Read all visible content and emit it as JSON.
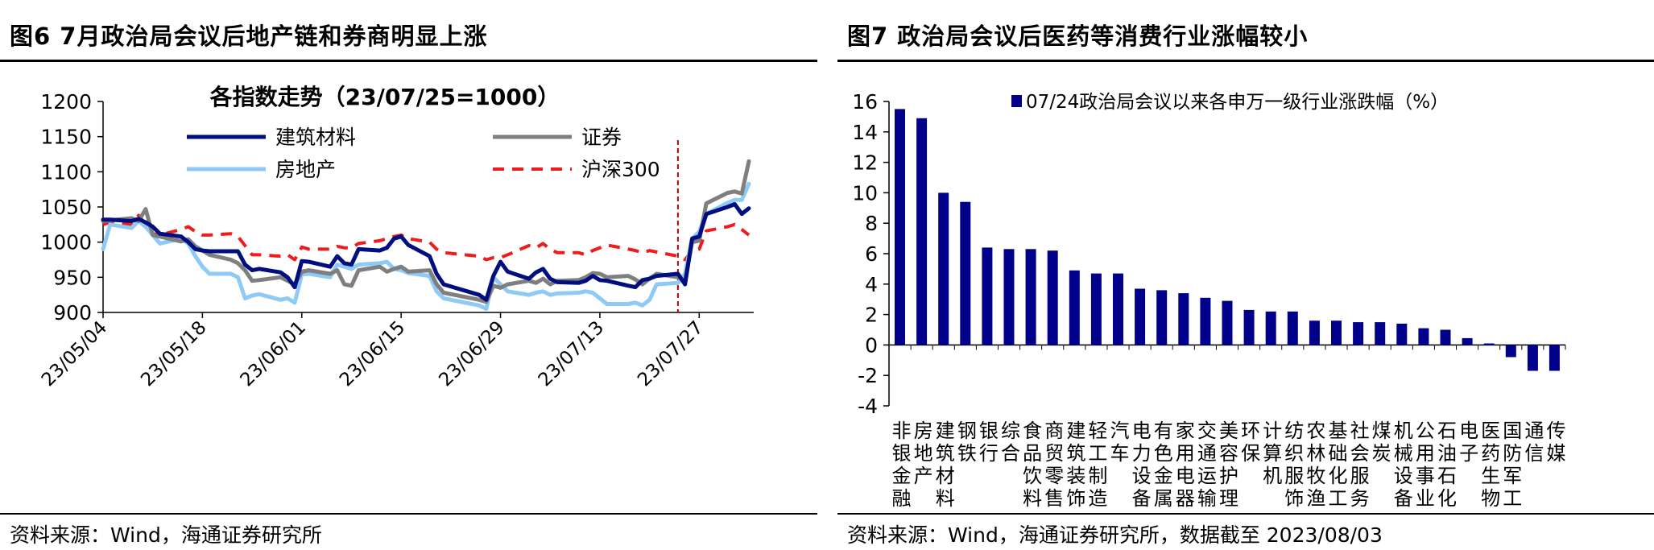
{
  "left_panel": {
    "figure_title": "图6  7月政治局会议后地产链和券商明显上涨",
    "source": "资料来源：Wind，海通证券研究所"
  },
  "right_panel": {
    "figure_title": "图7  政治局会议后医药等消费行业涨幅较小",
    "source": "资料来源：Wind，海通证券研究所，数据截至 2023/08/03"
  },
  "colors": {
    "navy": "#000e7f",
    "gray": "#7f7f7f",
    "lightblue": "#8fcaf5",
    "red": "#ee1c1c",
    "bar": "#00008b"
  },
  "chart_data": [
    {
      "type": "line",
      "title": "各指数走势（23/07/25=1000）",
      "ylim": [
        900,
        1200
      ],
      "yticks": [
        900,
        950,
        1000,
        1050,
        1100,
        1150,
        1200
      ],
      "xticks": [
        "23/05/04",
        "23/05/18",
        "23/06/01",
        "23/06/15",
        "23/06/29",
        "23/07/13",
        "23/07/27"
      ],
      "x_dates": [
        "2023-05-04",
        "2023-05-05",
        "2023-05-08",
        "2023-05-09",
        "2023-05-10",
        "2023-05-11",
        "2023-05-12",
        "2023-05-15",
        "2023-05-16",
        "2023-05-17",
        "2023-05-18",
        "2023-05-19",
        "2023-05-22",
        "2023-05-23",
        "2023-05-24",
        "2023-05-25",
        "2023-05-26",
        "2023-05-29",
        "2023-05-30",
        "2023-05-31",
        "2023-06-01",
        "2023-06-02",
        "2023-06-05",
        "2023-06-06",
        "2023-06-07",
        "2023-06-08",
        "2023-06-09",
        "2023-06-12",
        "2023-06-13",
        "2023-06-14",
        "2023-06-15",
        "2023-06-16",
        "2023-06-19",
        "2023-06-20",
        "2023-06-21",
        "2023-06-26",
        "2023-06-27",
        "2023-06-28",
        "2023-06-29",
        "2023-06-30",
        "2023-07-03",
        "2023-07-04",
        "2023-07-05",
        "2023-07-06",
        "2023-07-07",
        "2023-07-10",
        "2023-07-11",
        "2023-07-12",
        "2023-07-13",
        "2023-07-14",
        "2023-07-17",
        "2023-07-18",
        "2023-07-19",
        "2023-07-20",
        "2023-07-21",
        "2023-07-24",
        "2023-07-25",
        "2023-07-26",
        "2023-07-27",
        "2023-07-28",
        "2023-07-31",
        "2023-08-01",
        "2023-08-02",
        "2023-08-03"
      ],
      "legend_position": "top",
      "vline_date": "2023-07-24",
      "series": [
        {
          "name": "建筑材料",
          "color": "#000e7f",
          "style": "solid",
          "values": [
            1032,
            1032,
            1030,
            1033,
            1028,
            1022,
            1012,
            1008,
            1000,
            990,
            988,
            987,
            987,
            987,
            968,
            960,
            962,
            957,
            950,
            936,
            973,
            972,
            965,
            980,
            970,
            968,
            990,
            988,
            992,
            1005,
            1008,
            996,
            980,
            955,
            940,
            925,
            918,
            952,
            972,
            958,
            948,
            957,
            962,
            948,
            943,
            942,
            945,
            952,
            946,
            945,
            938,
            936,
            946,
            948,
            952,
            955,
            940,
            1005,
            1008,
            1040,
            1050,
            1054,
            1040,
            1048
          ]
        },
        {
          "name": "证券",
          "color": "#7f7f7f",
          "style": "solid",
          "values": [
            1030,
            1031,
            1034,
            1030,
            1047,
            1010,
            1008,
            1001,
            1004,
            994,
            988,
            982,
            975,
            970,
            960,
            945,
            946,
            950,
            945,
            940,
            958,
            960,
            955,
            960,
            940,
            938,
            960,
            965,
            958,
            962,
            965,
            958,
            960,
            940,
            928,
            918,
            915,
            938,
            935,
            940,
            945,
            942,
            948,
            940,
            945,
            946,
            950,
            956,
            955,
            950,
            952,
            947,
            940,
            948,
            955,
            950,
            945,
            1000,
            1002,
            1055,
            1070,
            1072,
            1069,
            1115
          ]
        },
        {
          "name": "房地产",
          "color": "#8fcaf5",
          "style": "solid",
          "values": [
            990,
            1025,
            1020,
            1030,
            1022,
            1010,
            998,
            1005,
            998,
            980,
            965,
            955,
            955,
            950,
            920,
            924,
            926,
            918,
            920,
            914,
            954,
            955,
            950,
            968,
            965,
            962,
            968,
            970,
            972,
            962,
            960,
            956,
            952,
            930,
            920,
            910,
            905,
            950,
            940,
            930,
            925,
            928,
            930,
            925,
            927,
            928,
            930,
            928,
            920,
            912,
            912,
            914,
            910,
            918,
            940,
            942,
            955,
            1005,
            1015,
            1040,
            1056,
            1060,
            1060,
            1083
          ]
        },
        {
          "name": "沪深300",
          "color": "#ee1c1c",
          "style": "dash",
          "values": [
            1025,
            1028,
            1025,
            1038,
            1025,
            1012,
            1010,
            1018,
            1022,
            1015,
            1010,
            1010,
            1012,
            1008,
            995,
            982,
            982,
            980,
            982,
            975,
            993,
            990,
            990,
            994,
            992,
            992,
            998,
            1002,
            1005,
            1008,
            1010,
            1005,
            1000,
            990,
            985,
            980,
            975,
            978,
            978,
            982,
            995,
            992,
            998,
            990,
            985,
            985,
            982,
            988,
            992,
            996,
            990,
            988,
            985,
            988,
            986,
            980,
            975,
            988,
            990,
            1016,
            1022,
            1025,
            1018,
            1010
          ]
        }
      ]
    },
    {
      "type": "bar",
      "legend": "07/24政治局会议以来各申万一级行业涨跌幅（%）",
      "legend_position": "top",
      "ylim": [
        -4,
        16
      ],
      "yticks": [
        -4,
        -2,
        0,
        2,
        4,
        6,
        8,
        10,
        12,
        14,
        16
      ],
      "categories": [
        "非银金融",
        "房地产",
        "建筑材料",
        "钢铁",
        "银行",
        "综合",
        "食品饮料",
        "商贸零售",
        "建筑装饰",
        "轻工制造",
        "汽车",
        "电力设备",
        "有色金属",
        "家用电器",
        "交通运输",
        "美容护理",
        "环保",
        "计算机",
        "纺织服饰",
        "农林牧渔",
        "基础化工",
        "社会服务",
        "煤炭",
        "机械设备",
        "公用事业",
        "石油石化",
        "电子",
        "医药生物",
        "国防军工",
        "通信",
        "传媒"
      ],
      "category_lines": [
        [
          "非",
          "银",
          "金",
          "融"
        ],
        [
          "房",
          "地",
          "产",
          ""
        ],
        [
          "建",
          "筑",
          "材",
          "料"
        ],
        [
          "钢",
          "铁",
          "",
          ""
        ],
        [
          "银",
          "行",
          "",
          ""
        ],
        [
          "综",
          "合",
          "",
          ""
        ],
        [
          "食",
          "品",
          "饮",
          "料"
        ],
        [
          "商",
          "贸",
          "零",
          "售"
        ],
        [
          "建",
          "筑",
          "装",
          "饰"
        ],
        [
          "轻",
          "工",
          "制",
          "造"
        ],
        [
          "汽",
          "车",
          "",
          ""
        ],
        [
          "电",
          "力",
          "设",
          "备"
        ],
        [
          "有",
          "色",
          "金",
          "属"
        ],
        [
          "家",
          "用",
          "电",
          "器"
        ],
        [
          "交",
          "通",
          "运",
          "输"
        ],
        [
          "美",
          "容",
          "护",
          "理"
        ],
        [
          "环",
          "保",
          "",
          ""
        ],
        [
          "计",
          "算",
          "机",
          ""
        ],
        [
          "纺",
          "织",
          "服",
          "饰"
        ],
        [
          "农",
          "林",
          "牧",
          "渔"
        ],
        [
          "基",
          "础",
          "化",
          "工"
        ],
        [
          "社",
          "会",
          "服",
          "务"
        ],
        [
          "煤",
          "炭",
          "",
          ""
        ],
        [
          "机",
          "械",
          "设",
          "备"
        ],
        [
          "公",
          "用",
          "事",
          "业"
        ],
        [
          "石",
          "油",
          "石",
          "化"
        ],
        [
          "电",
          "子",
          "",
          ""
        ],
        [
          "医",
          "药",
          "生",
          "物"
        ],
        [
          "国",
          "防",
          "军",
          "工"
        ],
        [
          "通",
          "信",
          "",
          ""
        ],
        [
          "传",
          "媒",
          "",
          ""
        ]
      ],
      "values": [
        15.5,
        14.9,
        10.0,
        9.4,
        6.4,
        6.3,
        6.3,
        6.2,
        4.9,
        4.7,
        4.7,
        3.7,
        3.6,
        3.4,
        3.1,
        2.9,
        2.3,
        2.2,
        2.2,
        1.6,
        1.6,
        1.5,
        1.5,
        1.4,
        1.1,
        1.0,
        0.45,
        0.1,
        -0.8,
        -1.7,
        -1.7
      ]
    }
  ]
}
